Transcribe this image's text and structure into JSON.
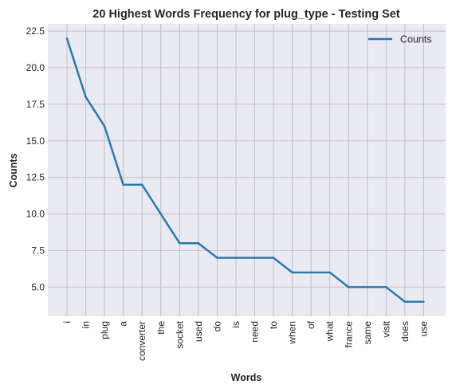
{
  "chart_data": {
    "type": "line",
    "title": "20 Highest Words Frequency for plug_type - Testing Set",
    "xlabel": "Words",
    "ylabel": "Counts",
    "categories": [
      "i",
      "in",
      "plug",
      "a",
      "converter",
      "the",
      "socket",
      "used",
      "do",
      "is",
      "need",
      "to",
      "when",
      "of",
      "what",
      "france",
      "same",
      "visit",
      "does",
      "use"
    ],
    "series": [
      {
        "name": "Counts",
        "values": [
          22,
          18,
          16,
          12,
          12,
          10,
          8,
          8,
          7,
          7,
          7,
          7,
          6,
          6,
          6,
          5,
          5,
          5,
          4,
          4
        ]
      }
    ],
    "ylim": [
      3.0,
      23.0
    ],
    "yticks": [
      "5.0",
      "7.5",
      "10.0",
      "12.5",
      "15.0",
      "17.5",
      "20.0",
      "22.5"
    ],
    "grid": true,
    "legend_position": "top-right",
    "colors": {
      "line": "#1f77b4",
      "plot_bg": "#eaeaf2",
      "grid": "#c0c0c0"
    }
  }
}
